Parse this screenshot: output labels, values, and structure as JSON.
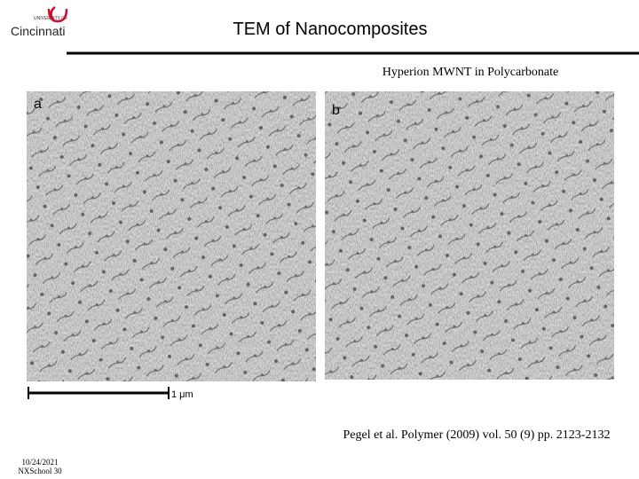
{
  "logo": {
    "top": "UNIVERSITY OF",
    "name": "Cincinnati"
  },
  "header": {
    "title": "TEM of Nanocomposites",
    "subtitle": "Hyperion MWNT in Polycarbonate"
  },
  "figure": {
    "panels": [
      {
        "label": "a"
      },
      {
        "label": "b"
      }
    ],
    "scale_bar": "1 μm"
  },
  "citation": "Pegel et al. Polymer (2009) vol. 50 (9) pp. 2123-2132",
  "footer": {
    "date": "10/24/2021",
    "slide": "NXSchool 30"
  }
}
